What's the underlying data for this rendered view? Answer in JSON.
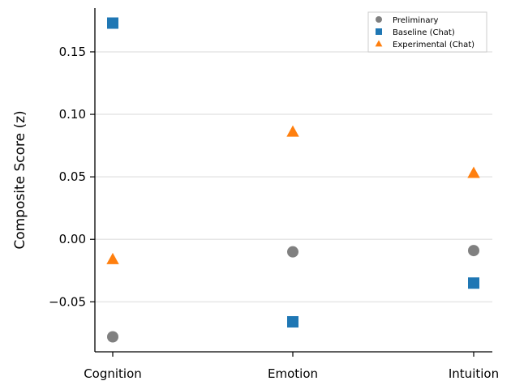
{
  "chart_data": {
    "type": "scatter",
    "categories": [
      "Cognition",
      "Emotion",
      "Intuition"
    ],
    "ylabel": "Composite Score (z)",
    "xlabel": "",
    "ylim": [
      -0.09,
      0.185
    ],
    "yticks": [
      -0.05,
      0.0,
      0.05,
      0.1,
      0.15
    ],
    "ytick_labels": [
      "−0.05",
      "0.00",
      "0.05",
      "0.10",
      "0.15"
    ],
    "grid": "horizontal",
    "legend_position": "top-right",
    "series": [
      {
        "name": "Preliminary",
        "marker": "circle",
        "color": "#808080",
        "values": [
          -0.078,
          -0.01,
          -0.009
        ]
      },
      {
        "name": "Baseline (Chat)",
        "marker": "square",
        "color": "#1f77b4",
        "values": [
          0.173,
          -0.066,
          -0.035
        ]
      },
      {
        "name": "Experimental (Chat)",
        "marker": "triangle",
        "color": "#ff7f0e",
        "values": [
          -0.016,
          0.086,
          0.053
        ]
      }
    ]
  }
}
